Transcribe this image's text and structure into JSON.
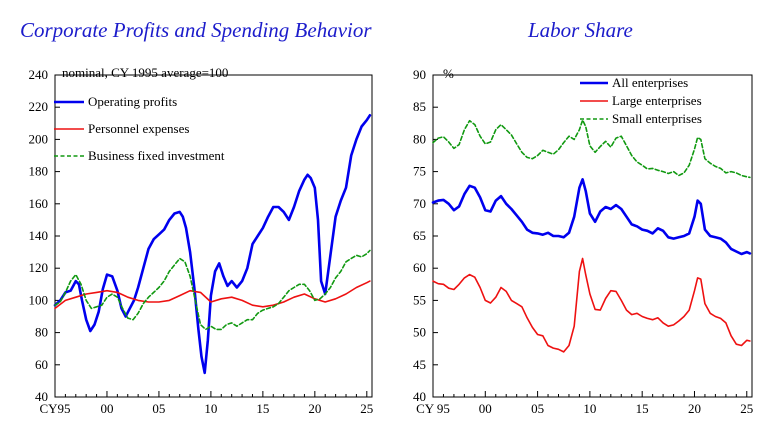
{
  "chart_data": [
    {
      "type": "line",
      "title": "Corporate Profits and Spending Behavior",
      "ylabel": "nominal, CY 1995 average=100",
      "xlabel": "",
      "xlim": [
        1995,
        2025.5
      ],
      "ylim": [
        40,
        240
      ],
      "y_ticks": [
        "240",
        "220",
        "200",
        "180",
        "160",
        "140",
        "120",
        "100",
        "80",
        "60",
        "40"
      ],
      "x_ticks": [
        "CY95",
        "00",
        "05",
        "10",
        "15",
        "20",
        "25"
      ],
      "legend": "top-left",
      "series": [
        {
          "name": "Operating profits",
          "color": "#0000ee",
          "style": "solid",
          "x": [
            1995,
            1995.5,
            1996,
            1996.5,
            1997,
            1997.3,
            1997.6,
            1998,
            1998.4,
            1998.8,
            1999.2,
            1999.6,
            2000,
            2000.5,
            2001,
            2001.4,
            2001.8,
            2002.2,
            2002.6,
            2003,
            2003.5,
            2004,
            2004.5,
            2005,
            2005.5,
            2006,
            2006.5,
            2007,
            2007.3,
            2007.6,
            2008,
            2008.4,
            2008.8,
            2009.1,
            2009.4,
            2009.7,
            2010,
            2010.4,
            2010.8,
            2011.2,
            2011.6,
            2012,
            2012.5,
            2013,
            2013.5,
            2014,
            2014.5,
            2015,
            2015.5,
            2016,
            2016.5,
            2017,
            2017.5,
            2018,
            2018.5,
            2019,
            2019.3,
            2019.6,
            2020,
            2020.3,
            2020.6,
            2021,
            2021.5,
            2022,
            2022.5,
            2023,
            2023.5,
            2024,
            2024.5,
            2025,
            2025.3
          ],
          "y": [
            97,
            100,
            105,
            106,
            112,
            110,
            100,
            88,
            81,
            85,
            93,
            107,
            116,
            115,
            106,
            95,
            90,
            95,
            100,
            108,
            120,
            132,
            138,
            141,
            144,
            150,
            154,
            155,
            152,
            145,
            130,
            108,
            82,
            65,
            55,
            75,
            103,
            118,
            123,
            115,
            109,
            112,
            108,
            112,
            120,
            135,
            140,
            145,
            152,
            158,
            158,
            155,
            150,
            158,
            168,
            175,
            178,
            176,
            170,
            150,
            112,
            104,
            128,
            152,
            162,
            170,
            190,
            200,
            208,
            212,
            215
          ]
        },
        {
          "name": "Personnel expenses",
          "color": "#ee1111",
          "style": "solid",
          "x": [
            1995,
            1996,
            1997,
            1998,
            1999,
            2000,
            2001,
            2002,
            2003,
            2004,
            2005,
            2006,
            2007,
            2008,
            2009,
            2010,
            2011,
            2012,
            2013,
            2014,
            2015,
            2016,
            2017,
            2018,
            2019,
            2020,
            2021,
            2022,
            2023,
            2024,
            2025,
            2025.3
          ],
          "y": [
            95,
            100,
            102,
            104,
            105,
            106,
            105,
            102,
            100,
            99,
            99,
            100,
            103,
            106,
            105,
            99,
            101,
            102,
            100,
            97,
            96,
            97,
            99,
            102,
            104,
            101,
            99,
            101,
            104,
            108,
            111,
            112
          ]
        },
        {
          "name": "Business fixed investment",
          "color": "#119911",
          "style": "dashed",
          "x": [
            1995,
            1995.5,
            1996,
            1996.5,
            1997,
            1997.5,
            1998,
            1998.5,
            1999,
            1999.5,
            2000,
            2000.5,
            2001,
            2001.5,
            2002,
            2002.5,
            2003,
            2003.5,
            2004,
            2004.5,
            2005,
            2005.5,
            2006,
            2006.5,
            2007,
            2007.5,
            2008,
            2008.5,
            2009,
            2009.5,
            2010,
            2010.5,
            2011,
            2011.5,
            2012,
            2012.5,
            2013,
            2013.5,
            2014,
            2014.5,
            2015,
            2015.5,
            2016,
            2016.5,
            2017,
            2017.5,
            2018,
            2018.5,
            2019,
            2019.5,
            2020,
            2020.5,
            2021,
            2021.5,
            2022,
            2022.5,
            2023,
            2023.5,
            2024,
            2024.5,
            2025,
            2025.3
          ],
          "y": [
            97,
            99,
            105,
            112,
            116,
            110,
            100,
            95,
            96,
            97,
            102,
            104,
            102,
            95,
            89,
            88,
            92,
            98,
            102,
            105,
            108,
            112,
            118,
            122,
            126,
            124,
            115,
            100,
            85,
            82,
            84,
            82,
            82,
            85,
            86,
            84,
            86,
            88,
            88,
            92,
            94,
            95,
            96,
            98,
            102,
            106,
            108,
            110,
            110,
            106,
            100,
            101,
            104,
            108,
            114,
            118,
            124,
            126,
            128,
            127,
            129,
            131
          ]
        }
      ]
    },
    {
      "type": "line",
      "title": "Labor Share",
      "ylabel": "%",
      "xlabel": "",
      "xlim": [
        1995,
        2025.5
      ],
      "ylim": [
        40,
        90
      ],
      "y_ticks": [
        "90",
        "85",
        "80",
        "75",
        "70",
        "65",
        "60",
        "55",
        "50",
        "45",
        "40"
      ],
      "x_ticks": [
        "CY 95",
        "00",
        "05",
        "10",
        "15",
        "20",
        "25"
      ],
      "legend": "top-right",
      "series": [
        {
          "name": "All enterprises",
          "color": "#0000ee",
          "style": "solid",
          "x": [
            1995,
            1995.5,
            1996,
            1996.5,
            1997,
            1997.5,
            1998,
            1998.5,
            1999,
            1999.5,
            2000,
            2000.5,
            2001,
            2001.5,
            2002,
            2002.5,
            2003,
            2003.5,
            2004,
            2004.5,
            2005,
            2005.5,
            2006,
            2006.5,
            2007,
            2007.5,
            2008,
            2008.5,
            2009,
            2009.3,
            2009.6,
            2010,
            2010.5,
            2011,
            2011.5,
            2012,
            2012.5,
            2013,
            2013.5,
            2014,
            2014.5,
            2015,
            2015.5,
            2016,
            2016.5,
            2017,
            2017.5,
            2018,
            2018.5,
            2019,
            2019.5,
            2020,
            2020.3,
            2020.6,
            2021,
            2021.5,
            2022,
            2022.5,
            2023,
            2023.5,
            2024,
            2024.5,
            2025,
            2025.3
          ],
          "y": [
            70.2,
            70.5,
            70.6,
            70.0,
            69.0,
            69.6,
            71.5,
            72.8,
            72.5,
            71.0,
            69.0,
            68.8,
            70.5,
            71.2,
            70.0,
            69.2,
            68.2,
            67.2,
            66.0,
            65.5,
            65.4,
            65.2,
            65.5,
            65.0,
            65.0,
            64.8,
            65.5,
            68.0,
            72.5,
            73.8,
            72.0,
            68.5,
            67.2,
            68.8,
            69.5,
            69.2,
            69.8,
            69.2,
            68.0,
            66.8,
            66.5,
            66.0,
            65.8,
            65.4,
            66.2,
            65.8,
            64.8,
            64.6,
            64.8,
            65.0,
            65.4,
            68.0,
            70.5,
            70.0,
            66.0,
            65.0,
            64.8,
            64.6,
            64.0,
            63.0,
            62.6,
            62.2,
            62.5,
            62.3
          ]
        },
        {
          "name": "Large enterprises",
          "color": "#ee1111",
          "style": "solid",
          "x": [
            1995,
            1995.5,
            1996,
            1996.5,
            1997,
            1997.5,
            1998,
            1998.5,
            1999,
            1999.5,
            2000,
            2000.5,
            2001,
            2001.5,
            2002,
            2002.5,
            2003,
            2003.5,
            2004,
            2004.5,
            2005,
            2005.5,
            2006,
            2006.5,
            2007,
            2007.5,
            2008,
            2008.5,
            2009,
            2009.3,
            2009.6,
            2010,
            2010.5,
            2011,
            2011.5,
            2012,
            2012.5,
            2013,
            2013.5,
            2014,
            2014.5,
            2015,
            2015.5,
            2016,
            2016.5,
            2017,
            2017.5,
            2018,
            2018.5,
            2019,
            2019.5,
            2020,
            2020.3,
            2020.6,
            2021,
            2021.5,
            2022,
            2022.5,
            2023,
            2023.5,
            2024,
            2024.5,
            2025,
            2025.3
          ],
          "y": [
            58.0,
            57.6,
            57.5,
            56.9,
            56.7,
            57.5,
            58.5,
            59.0,
            58.6,
            57.0,
            55.0,
            54.6,
            55.5,
            57.0,
            56.4,
            55.0,
            54.5,
            54.0,
            52.3,
            50.8,
            49.7,
            49.5,
            48.0,
            47.6,
            47.4,
            47.0,
            48.0,
            51.0,
            59.5,
            61.5,
            59.0,
            56.0,
            53.6,
            53.5,
            55.3,
            56.5,
            56.4,
            55.0,
            53.5,
            52.8,
            53.0,
            52.5,
            52.2,
            52.0,
            52.3,
            51.5,
            51.0,
            51.2,
            51.8,
            52.5,
            53.5,
            56.5,
            58.5,
            58.3,
            54.5,
            53.0,
            52.5,
            52.2,
            51.5,
            49.5,
            48.2,
            48.0,
            48.8,
            48.7
          ]
        },
        {
          "name": "Small enterprises",
          "color": "#119911",
          "style": "dashed",
          "x": [
            1995,
            1995.5,
            1996,
            1996.5,
            1997,
            1997.5,
            1998,
            1998.5,
            1999,
            1999.5,
            2000,
            2000.5,
            2001,
            2001.5,
            2002,
            2002.5,
            2003,
            2003.5,
            2004,
            2004.5,
            2005,
            2005.5,
            2006,
            2006.5,
            2007,
            2007.5,
            2008,
            2008.5,
            2009,
            2009.3,
            2009.6,
            2010,
            2010.5,
            2011,
            2011.5,
            2012,
            2012.5,
            2013,
            2013.5,
            2014,
            2014.5,
            2015,
            2015.5,
            2016,
            2016.5,
            2017,
            2017.5,
            2018,
            2018.5,
            2019,
            2019.5,
            2020,
            2020.3,
            2020.6,
            2021,
            2021.5,
            2022,
            2022.5,
            2023,
            2023.5,
            2024,
            2024.5,
            2025,
            2025.3
          ],
          "y": [
            79.5,
            80.2,
            80.4,
            79.6,
            78.6,
            79.2,
            81.5,
            82.9,
            82.3,
            80.5,
            79.3,
            79.6,
            81.5,
            82.3,
            81.5,
            80.7,
            79.3,
            78.0,
            77.2,
            77.0,
            77.5,
            78.3,
            78.0,
            77.7,
            78.4,
            79.5,
            80.5,
            80.0,
            81.5,
            83.0,
            82.0,
            79.0,
            78.0,
            78.9,
            79.7,
            78.8,
            80.2,
            80.5,
            79.0,
            77.5,
            76.5,
            76.0,
            75.4,
            75.5,
            75.2,
            75.0,
            74.7,
            75.0,
            74.4,
            74.8,
            76.0,
            78.5,
            80.3,
            80.0,
            77.0,
            76.3,
            75.8,
            75.5,
            74.8,
            75.0,
            74.8,
            74.4,
            74.2,
            74.1
          ]
        }
      ]
    }
  ]
}
